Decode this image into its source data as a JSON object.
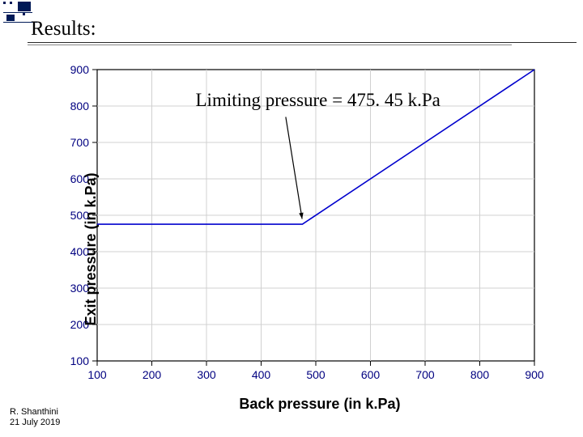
{
  "slide": {
    "heading": "Results:",
    "footer_author": "R. Shanthini",
    "footer_date": "21 July 2019"
  },
  "chart": {
    "type": "line",
    "xlabel": "Back pressure (in k.Pa)",
    "ylabel": "Exit pressure (in k.Pa)",
    "xlim": [
      100,
      900
    ],
    "ylim": [
      100,
      900
    ],
    "xtick_step": 100,
    "ytick_step": 100,
    "xtick_labels": [
      "100",
      "200",
      "300",
      "400",
      "500",
      "600",
      "700",
      "800",
      "900"
    ],
    "ytick_labels": [
      "100",
      "200",
      "300",
      "400",
      "500",
      "600",
      "700",
      "800",
      "900"
    ],
    "grid_color": "#d0d0d0",
    "axis_color": "#000000",
    "background_color": "#ffffff",
    "tick_font_size": 14,
    "tick_color": "#000080",
    "label_font_size": 18,
    "label_font_weight": "700",
    "line": {
      "color": "#0000cd",
      "width": 1.6,
      "data": [
        [
          100,
          475.45
        ],
        [
          475.45,
          475.45
        ],
        [
          900,
          900
        ]
      ]
    },
    "annotation": {
      "text": "Limiting pressure = 475. 45 k.Pa",
      "xy_text": [
        280,
        800
      ],
      "arrow": {
        "from": [
          445,
          770
        ],
        "to": [
          475,
          490
        ],
        "color": "#000000",
        "width": 1.2
      }
    }
  }
}
